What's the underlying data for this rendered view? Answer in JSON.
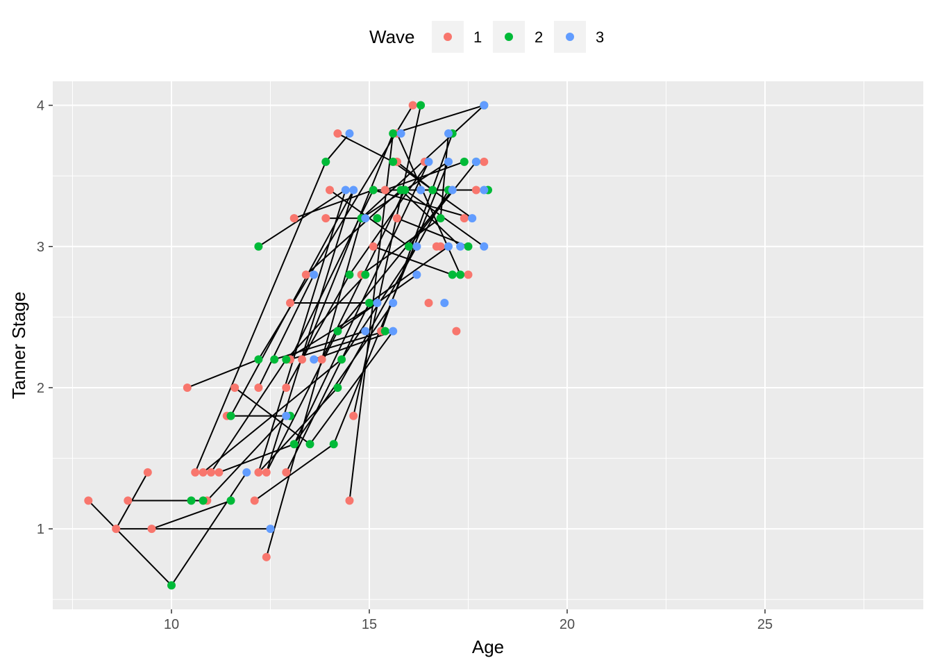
{
  "chart_data": {
    "type": "scatter",
    "title": "",
    "xlabel": "Age",
    "ylabel": "Tanner Stage",
    "xlim": [
      7,
      29
    ],
    "ylim": [
      0.43,
      4.17
    ],
    "x_ticks": [
      10,
      15,
      20,
      25
    ],
    "y_ticks": [
      1,
      2,
      3,
      4
    ],
    "grid": true,
    "legend": {
      "title": "Wave",
      "position": "top",
      "entries": [
        {
          "label": "1",
          "color": "#F8766D"
        },
        {
          "label": "2",
          "color": "#00BA38"
        },
        {
          "label": "3",
          "color": "#619CFF"
        }
      ]
    },
    "colors": {
      "panel": "#EBEBEB",
      "grid": "#FFFFFF",
      "line": "#000000",
      "tick": "#333333"
    },
    "series": [
      {
        "name": "1",
        "points": [
          [
            7.9,
            1.2
          ],
          [
            8.6,
            1.0
          ],
          [
            8.9,
            1.2
          ],
          [
            9.4,
            1.4
          ],
          [
            9.5,
            1.0
          ],
          [
            10.4,
            2.0
          ],
          [
            10.6,
            1.4
          ],
          [
            10.8,
            1.4
          ],
          [
            10.9,
            1.2
          ],
          [
            11.0,
            1.4
          ],
          [
            11.2,
            1.4
          ],
          [
            11.4,
            1.8
          ],
          [
            11.6,
            2.0
          ],
          [
            12.1,
            1.2
          ],
          [
            12.2,
            2.0
          ],
          [
            12.2,
            1.4
          ],
          [
            12.4,
            1.4
          ],
          [
            12.4,
            0.8
          ],
          [
            12.9,
            1.8
          ],
          [
            12.9,
            2.0
          ],
          [
            12.9,
            1.4
          ],
          [
            13.0,
            2.6
          ],
          [
            13.0,
            2.2
          ],
          [
            13.1,
            3.2
          ],
          [
            13.3,
            2.2
          ],
          [
            13.4,
            2.8
          ],
          [
            13.8,
            2.2
          ],
          [
            13.9,
            3.2
          ],
          [
            14.0,
            3.4
          ],
          [
            14.2,
            3.8
          ],
          [
            14.5,
            1.2
          ],
          [
            14.6,
            1.8
          ],
          [
            14.8,
            2.8
          ],
          [
            15.1,
            3.4
          ],
          [
            15.1,
            3.0
          ],
          [
            15.3,
            2.4
          ],
          [
            15.4,
            3.4
          ],
          [
            15.7,
            3.6
          ],
          [
            15.7,
            3.2
          ],
          [
            15.7,
            3.8
          ],
          [
            16.1,
            4.0
          ],
          [
            16.4,
            3.6
          ],
          [
            16.5,
            2.6
          ],
          [
            16.7,
            3.0
          ],
          [
            16.8,
            3.0
          ],
          [
            17.2,
            2.4
          ],
          [
            17.4,
            3.2
          ],
          [
            17.5,
            2.8
          ],
          [
            17.7,
            3.4
          ],
          [
            17.9,
            3.6
          ]
        ]
      },
      {
        "name": "2",
        "points": [
          [
            10.0,
            0.6
          ],
          [
            10.5,
            1.2
          ],
          [
            10.8,
            1.2
          ],
          [
            11.5,
            1.8
          ],
          [
            11.5,
            1.2
          ],
          [
            12.2,
            3.0
          ],
          [
            12.2,
            2.2
          ],
          [
            12.6,
            2.2
          ],
          [
            12.9,
            2.2
          ],
          [
            13.0,
            1.8
          ],
          [
            13.1,
            1.6
          ],
          [
            13.5,
            1.6
          ],
          [
            13.9,
            3.6
          ],
          [
            14.1,
            1.6
          ],
          [
            14.2,
            2.4
          ],
          [
            14.2,
            2.0
          ],
          [
            14.3,
            2.2
          ],
          [
            14.5,
            2.8
          ],
          [
            14.8,
            3.2
          ],
          [
            14.9,
            2.8
          ],
          [
            15.0,
            2.6
          ],
          [
            15.1,
            3.4
          ],
          [
            15.2,
            3.2
          ],
          [
            15.4,
            2.4
          ],
          [
            15.6,
            3.8
          ],
          [
            15.6,
            3.6
          ],
          [
            15.8,
            3.4
          ],
          [
            15.9,
            3.4
          ],
          [
            16.0,
            3.0
          ],
          [
            16.3,
            4.0
          ],
          [
            16.6,
            3.4
          ],
          [
            16.8,
            3.2
          ],
          [
            17.0,
            3.4
          ],
          [
            17.1,
            2.8
          ],
          [
            17.1,
            3.8
          ],
          [
            17.3,
            2.8
          ],
          [
            17.4,
            3.6
          ],
          [
            17.5,
            3.0
          ],
          [
            17.7,
            3.6
          ],
          [
            17.9,
            4.0
          ],
          [
            18.0,
            3.4
          ]
        ]
      },
      {
        "name": "3",
        "points": [
          [
            11.9,
            1.4
          ],
          [
            12.5,
            1.0
          ],
          [
            12.9,
            1.8
          ],
          [
            13.6,
            2.8
          ],
          [
            13.6,
            2.2
          ],
          [
            14.4,
            3.4
          ],
          [
            14.5,
            3.8
          ],
          [
            14.6,
            3.4
          ],
          [
            14.9,
            2.4
          ],
          [
            14.9,
            3.2
          ],
          [
            15.2,
            2.6
          ],
          [
            15.6,
            2.4
          ],
          [
            15.6,
            2.6
          ],
          [
            15.8,
            3.8
          ],
          [
            16.2,
            2.8
          ],
          [
            16.2,
            3.0
          ],
          [
            16.3,
            3.4
          ],
          [
            16.5,
            3.6
          ],
          [
            16.9,
            2.6
          ],
          [
            17.0,
            3.0
          ],
          [
            17.0,
            3.6
          ],
          [
            17.0,
            3.8
          ],
          [
            17.1,
            3.4
          ],
          [
            17.3,
            3.0
          ],
          [
            17.6,
            3.2
          ],
          [
            17.7,
            3.6
          ],
          [
            17.9,
            3.4
          ],
          [
            17.9,
            3.0
          ],
          [
            17.9,
            4.0
          ]
        ]
      }
    ],
    "trajectories": [
      [
        [
          7.9,
          1.2
        ],
        [
          8.6,
          1.0
        ],
        [
          10.0,
          0.6
        ],
        [
          11.9,
          1.4
        ]
      ],
      [
        [
          8.6,
          1.0
        ],
        [
          9.4,
          1.4
        ]
      ],
      [
        [
          8.6,
          1.0
        ],
        [
          12.5,
          1.0
        ]
      ],
      [
        [
          8.9,
          1.2
        ],
        [
          10.8,
          1.2
        ]
      ],
      [
        [
          9.5,
          1.0
        ],
        [
          11.5,
          1.2
        ]
      ],
      [
        [
          10.4,
          2.0
        ],
        [
          12.2,
          2.2
        ]
      ],
      [
        [
          10.6,
          1.4
        ],
        [
          13.9,
          3.6
        ],
        [
          14.5,
          3.8
        ]
      ],
      [
        [
          10.8,
          1.4
        ],
        [
          14.3,
          2.2
        ],
        [
          16.2,
          3.0
        ]
      ],
      [
        [
          10.9,
          1.2
        ],
        [
          12.9,
          1.8
        ]
      ],
      [
        [
          11.0,
          1.4
        ],
        [
          12.9,
          2.2
        ],
        [
          15.2,
          2.6
        ]
      ],
      [
        [
          11.2,
          1.4
        ],
        [
          13.1,
          1.6
        ],
        [
          15.6,
          2.6
        ]
      ],
      [
        [
          11.4,
          1.8
        ],
        [
          13.0,
          1.8
        ]
      ],
      [
        [
          11.6,
          2.0
        ],
        [
          13.5,
          1.6
        ],
        [
          15.6,
          2.4
        ]
      ],
      [
        [
          12.1,
          1.2
        ],
        [
          14.1,
          1.6
        ]
      ],
      [
        [
          12.2,
          2.0
        ],
        [
          13.6,
          2.8
        ]
      ],
      [
        [
          12.2,
          1.4
        ],
        [
          14.2,
          2.0
        ]
      ],
      [
        [
          12.4,
          1.4
        ],
        [
          14.2,
          2.4
        ],
        [
          16.2,
          2.8
        ]
      ],
      [
        [
          12.4,
          0.8
        ],
        [
          14.8,
          3.2
        ],
        [
          17.0,
          3.6
        ]
      ],
      [
        [
          12.9,
          2.0
        ],
        [
          14.5,
          2.8
        ],
        [
          16.5,
          3.6
        ]
      ],
      [
        [
          12.9,
          1.4
        ],
        [
          15.0,
          2.6
        ],
        [
          17.0,
          3.0
        ]
      ],
      [
        [
          13.0,
          2.6
        ],
        [
          15.2,
          2.6
        ]
      ],
      [
        [
          13.0,
          2.2
        ],
        [
          15.1,
          3.4
        ],
        [
          17.9,
          3.4
        ]
      ],
      [
        [
          13.1,
          3.2
        ],
        [
          15.1,
          3.4
        ],
        [
          17.6,
          3.2
        ]
      ],
      [
        [
          13.3,
          2.2
        ],
        [
          15.6,
          3.8
        ],
        [
          17.9,
          4.0
        ]
      ],
      [
        [
          13.4,
          2.8
        ],
        [
          15.8,
          3.4
        ],
        [
          17.3,
          3.0
        ]
      ],
      [
        [
          13.8,
          2.2
        ],
        [
          15.9,
          3.4
        ],
        [
          17.9,
          3.0
        ]
      ],
      [
        [
          13.9,
          3.2
        ],
        [
          14.8,
          3.2
        ],
        [
          17.9,
          4.0
        ]
      ],
      [
        [
          14.0,
          3.4
        ],
        [
          16.0,
          3.0
        ],
        [
          17.7,
          3.6
        ]
      ],
      [
        [
          14.2,
          3.8
        ],
        [
          15.6,
          3.6
        ],
        [
          17.6,
          3.2
        ]
      ],
      [
        [
          14.5,
          1.2
        ],
        [
          15.6,
          3.8
        ]
      ],
      [
        [
          14.6,
          1.8
        ],
        [
          16.3,
          4.0
        ]
      ],
      [
        [
          14.8,
          2.8
        ],
        [
          16.8,
          3.2
        ],
        [
          17.0,
          3.8
        ]
      ],
      [
        [
          15.1,
          3.0
        ],
        [
          17.1,
          2.8
        ]
      ],
      [
        [
          15.3,
          2.4
        ],
        [
          17.1,
          3.8
        ]
      ],
      [
        [
          15.4,
          3.4
        ],
        [
          17.4,
          3.6
        ]
      ],
      [
        [
          15.7,
          3.6
        ],
        [
          16.6,
          3.4
        ]
      ],
      [
        [
          15.7,
          3.2
        ],
        [
          17.5,
          3.0
        ]
      ],
      [
        [
          15.7,
          3.8
        ],
        [
          17.3,
          2.8
        ]
      ],
      [
        [
          12.2,
          3.0
        ],
        [
          14.4,
          3.4
        ]
      ],
      [
        [
          13.6,
          2.2
        ],
        [
          15.6,
          2.4
        ]
      ],
      [
        [
          13.0,
          2.2
        ],
        [
          15.4,
          2.4
        ]
      ],
      [
        [
          12.6,
          2.2
        ],
        [
          14.9,
          2.4
        ]
      ],
      [
        [
          12.9,
          2.2
        ],
        [
          14.9,
          2.8
        ]
      ],
      [
        [
          11.5,
          1.8
        ],
        [
          14.6,
          3.4
        ]
      ],
      [
        [
          12.2,
          2.2
        ],
        [
          16.1,
          4.0
        ]
      ],
      [
        [
          13.1,
          1.6
        ],
        [
          16.5,
          3.6
        ]
      ],
      [
        [
          14.1,
          1.6
        ],
        [
          17.0,
          3.6
        ]
      ],
      [
        [
          14.2,
          2.0
        ],
        [
          17.0,
          3.4
        ]
      ],
      [
        [
          14.2,
          2.4
        ],
        [
          17.1,
          3.4
        ]
      ],
      [
        [
          12.4,
          1.4
        ],
        [
          14.6,
          3.4
        ]
      ],
      [
        [
          12.2,
          1.4
        ],
        [
          14.4,
          3.4
        ]
      ]
    ]
  }
}
